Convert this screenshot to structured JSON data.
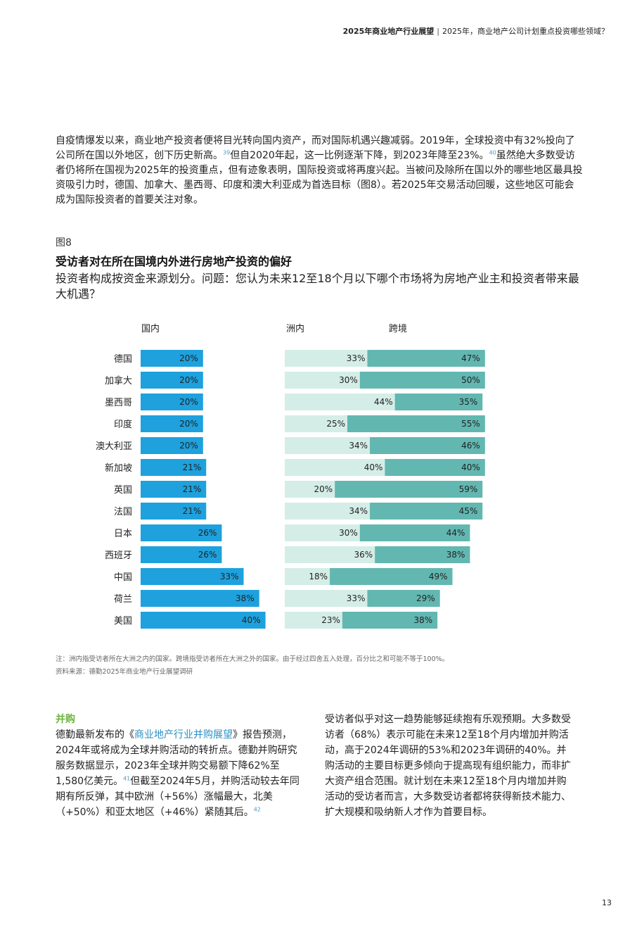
{
  "header": {
    "report": "2025年商业地产行业展望",
    "separator": "|",
    "section": "2025年，商业地产公司计划重点投资哪些领域？"
  },
  "intro": {
    "text_1": "自疫情爆发以来，商业地产投资者便将目光转向国内资产，而对国际机遇兴趣减弱。2019年，全球投资中有32%投向了公司所在国以外地区，创下历史新高。",
    "ref_1": "39",
    "text_2": "但自2020年起，这一比例逐渐下降，到2023年降至23%。",
    "ref_2": "40",
    "text_3": "虽然绝大多数受访者仍将所在国视为2025年的投资重点，但有迹象表明，国际投资或将再度兴起。当被问及除所在国以外的哪些地区最具投资吸引力时，德国、加拿大、墨西哥、印度和澳大利亚成为首选目标（图8）。若2025年交易活动回暖，这些地区可能会成为国际投资者的首要关注对象。"
  },
  "figure": {
    "label": "图8",
    "title": "受访者对在所在国境内外进行房地产投资的偏好",
    "subtitle": "投资者构成按资金来源划分。问题：您认为未来12至18个月以下哪个市场将为房地产业主和投资者带来最大机遇？"
  },
  "chart_data": {
    "type": "bar",
    "title": "受访者对在所在国境内外进行房地产投资的偏好",
    "column_headers": [
      "国内",
      "洲内",
      "跨境"
    ],
    "categories": [
      "德国",
      "加拿大",
      "墨西哥",
      "印度",
      "澳大利亚",
      "新加坡",
      "英国",
      "法国",
      "日本",
      "西班牙",
      "中国",
      "荷兰",
      "美国"
    ],
    "series": [
      {
        "name": "国内",
        "values": [
          20,
          20,
          20,
          20,
          20,
          21,
          21,
          21,
          26,
          26,
          33,
          38,
          40
        ]
      },
      {
        "name": "洲内",
        "values": [
          33,
          30,
          44,
          25,
          34,
          40,
          20,
          34,
          30,
          36,
          18,
          33,
          23
        ]
      },
      {
        "name": "跨境",
        "values": [
          47,
          50,
          35,
          55,
          46,
          40,
          59,
          45,
          44,
          38,
          49,
          29,
          38
        ]
      }
    ],
    "value_suffix": "%",
    "colors": {
      "domestic": "#1ea1dd",
      "intra_bg": "#d4ede7",
      "cross": "#62b7b1"
    }
  },
  "notes": {
    "note": "注：洲内指受访者所在大洲之内的国家。跨境指受访者所在大洲之外的国家。由于经过四舍五入处理，百分比之和可能不等于100%。",
    "source": "资料来源：德勤2025年商业地产行业展望调研"
  },
  "ma": {
    "heading": "并购",
    "text_1": "德勤最新发布的《",
    "link": "商业地产行业并购展望",
    "text_2": "》报告预测，2024年或将成为全球并购活动的转折点。德勤并购研究服务数据显示，2023年全球并购交易额下降62%至1,580亿美元。",
    "ref_1": "41",
    "text_3": "但截至2024年5月，并购活动较去年同期有所反弹，其中欧洲（+56%）涨幅最大，北美（+50%）和亚太地区（+46%）紧随其后。",
    "ref_2": "42",
    "right_text": "受访者似乎对这一趋势能够延续抱有乐观预期。大多数受访者（68%）表示可能在未来12至18个月内增加并购活动，高于2024年调研的53%和2023年调研的40%。并购活动的主要目标更多倾向于提高现有组织能力，而非扩大资产组合范围。就计划在未来12至18个月内增加并购活动的受访者而言，大多数受访者都将获得新技术能力、扩大规模和吸纳新人才作为首要目标。"
  },
  "page_number": "13"
}
